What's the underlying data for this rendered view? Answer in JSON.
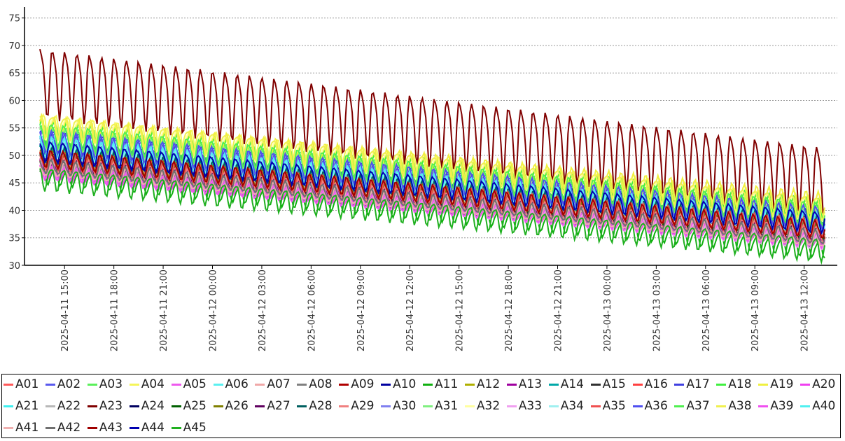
{
  "chart_data": {
    "type": "line",
    "title": "",
    "xlabel": "",
    "ylabel": "",
    "ylim": [
      30,
      77
    ],
    "y_ticks": [
      30,
      35,
      40,
      45,
      50,
      55,
      60,
      65,
      70,
      75
    ],
    "grid": "horizontal dashed",
    "legend_position": "bottom",
    "x_ticks": [
      "2025-04-11 15:00",
      "2025-04-11 18:00",
      "2025-04-11 21:00",
      "2025-04-12 00:00",
      "2025-04-12 03:00",
      "2025-04-12 06:00",
      "2025-04-12 09:00",
      "2025-04-12 12:00",
      "2025-04-12 15:00",
      "2025-04-12 18:00",
      "2025-04-12 21:00",
      "2025-04-13 00:00",
      "2025-04-13 03:00",
      "2025-04-13 06:00",
      "2025-04-13 09:00",
      "2025-04-13 12:00"
    ],
    "x_range": [
      "2025-04-11 13:30",
      "2025-04-13 13:15"
    ],
    "series_model": "approximate per-series trend (value at period start and end) with periodic oscillation; curves are dense and individual points are not readable",
    "series": [
      {
        "name": "A01",
        "color": "#ff5a5a",
        "start": 49.0,
        "end": 36.0,
        "amp": 1.5
      },
      {
        "name": "A02",
        "color": "#5a5aee",
        "start": 52.5,
        "end": 38.0,
        "amp": 2.0
      },
      {
        "name": "A03",
        "color": "#5af05a",
        "start": 54.0,
        "end": 39.5,
        "amp": 2.0
      },
      {
        "name": "A04",
        "color": "#f5f55a",
        "start": 55.5,
        "end": 40.5,
        "amp": 2.0
      },
      {
        "name": "A05",
        "color": "#ee5aee",
        "start": 47.0,
        "end": 34.5,
        "amp": 1.2
      },
      {
        "name": "A06",
        "color": "#5af0f0",
        "start": 51.5,
        "end": 37.5,
        "amp": 1.8
      },
      {
        "name": "A07",
        "color": "#f0a8a8",
        "start": 47.5,
        "end": 35.0,
        "amp": 1.3
      },
      {
        "name": "A08",
        "color": "#808080",
        "start": 48.0,
        "end": 35.0,
        "amp": 1.2
      },
      {
        "name": "A09",
        "color": "#b00000",
        "start": 49.5,
        "end": 36.5,
        "amp": 1.5
      },
      {
        "name": "A10",
        "color": "#0000a0",
        "start": 51.0,
        "end": 38.5,
        "amp": 1.8
      },
      {
        "name": "A11",
        "color": "#10b010",
        "start": 46.5,
        "end": 33.0,
        "amp": 1.5
      },
      {
        "name": "A12",
        "color": "#b0b000",
        "start": 50.0,
        "end": 37.0,
        "amp": 1.5
      },
      {
        "name": "A13",
        "color": "#a000a0",
        "start": 48.5,
        "end": 35.5,
        "amp": 1.3
      },
      {
        "name": "A14",
        "color": "#00a8a8",
        "start": 50.5,
        "end": 37.5,
        "amp": 1.6
      },
      {
        "name": "A15",
        "color": "#303030",
        "start": 51.0,
        "end": 38.0,
        "amp": 1.6
      },
      {
        "name": "A16",
        "color": "#ff4040",
        "start": 49.5,
        "end": 37.0,
        "amp": 1.5
      },
      {
        "name": "A17",
        "color": "#4040e0",
        "start": 53.0,
        "end": 38.5,
        "amp": 2.0
      },
      {
        "name": "A18",
        "color": "#40f040",
        "start": 54.5,
        "end": 40.0,
        "amp": 2.0
      },
      {
        "name": "A19",
        "color": "#f0f040",
        "start": 55.0,
        "end": 41.0,
        "amp": 2.0
      },
      {
        "name": "A20",
        "color": "#f040f0",
        "start": 47.0,
        "end": 34.5,
        "amp": 1.2
      },
      {
        "name": "A21",
        "color": "#40f0f0",
        "start": 51.0,
        "end": 37.0,
        "amp": 1.8
      },
      {
        "name": "A22",
        "color": "#b8b8b8",
        "start": 48.0,
        "end": 35.0,
        "amp": 1.3
      },
      {
        "name": "A23",
        "color": "#800000",
        "start": 64.0,
        "end": 46.0,
        "amp": 6.0
      },
      {
        "name": "A24",
        "color": "#000060",
        "start": 51.5,
        "end": 38.0,
        "amp": 1.8
      },
      {
        "name": "A25",
        "color": "#006000",
        "start": 49.0,
        "end": 36.5,
        "amp": 1.5
      },
      {
        "name": "A26",
        "color": "#808000",
        "start": 49.5,
        "end": 36.5,
        "amp": 1.4
      },
      {
        "name": "A27",
        "color": "#600060",
        "start": 48.5,
        "end": 35.5,
        "amp": 1.3
      },
      {
        "name": "A28",
        "color": "#006060",
        "start": 50.0,
        "end": 37.0,
        "amp": 1.5
      },
      {
        "name": "A29",
        "color": "#f08080",
        "start": 48.5,
        "end": 35.5,
        "amp": 1.4
      },
      {
        "name": "A30",
        "color": "#8080f0",
        "start": 52.0,
        "end": 38.0,
        "amp": 1.8
      },
      {
        "name": "A31",
        "color": "#80f080",
        "start": 53.5,
        "end": 39.0,
        "amp": 1.9
      },
      {
        "name": "A32",
        "color": "#ffffa0",
        "start": 55.0,
        "end": 40.0,
        "amp": 2.0
      },
      {
        "name": "A33",
        "color": "#f0a0f0",
        "start": 47.0,
        "end": 34.0,
        "amp": 1.2
      },
      {
        "name": "A34",
        "color": "#a0f0f0",
        "start": 51.0,
        "end": 37.5,
        "amp": 1.7
      },
      {
        "name": "A35",
        "color": "#f05050",
        "start": 49.0,
        "end": 36.5,
        "amp": 1.5
      },
      {
        "name": "A36",
        "color": "#5050f0",
        "start": 52.5,
        "end": 38.5,
        "amp": 2.0
      },
      {
        "name": "A37",
        "color": "#50f050",
        "start": 54.0,
        "end": 39.5,
        "amp": 2.0
      },
      {
        "name": "A38",
        "color": "#f0f050",
        "start": 55.5,
        "end": 40.5,
        "amp": 2.0
      },
      {
        "name": "A39",
        "color": "#f050f0",
        "start": 47.0,
        "end": 34.5,
        "amp": 1.2
      },
      {
        "name": "A40",
        "color": "#50f0f0",
        "start": 51.5,
        "end": 37.5,
        "amp": 1.8
      },
      {
        "name": "A41",
        "color": "#f0b0b0",
        "start": 47.5,
        "end": 34.5,
        "amp": 1.3
      },
      {
        "name": "A42",
        "color": "#707070",
        "start": 48.0,
        "end": 35.0,
        "amp": 1.2
      },
      {
        "name": "A43",
        "color": "#a00000",
        "start": 49.5,
        "end": 36.5,
        "amp": 1.5
      },
      {
        "name": "A44",
        "color": "#0000b0",
        "start": 51.0,
        "end": 38.0,
        "amp": 1.8
      },
      {
        "name": "A45",
        "color": "#20b020",
        "start": 46.0,
        "end": 33.0,
        "amp": 2.0
      }
    ]
  }
}
